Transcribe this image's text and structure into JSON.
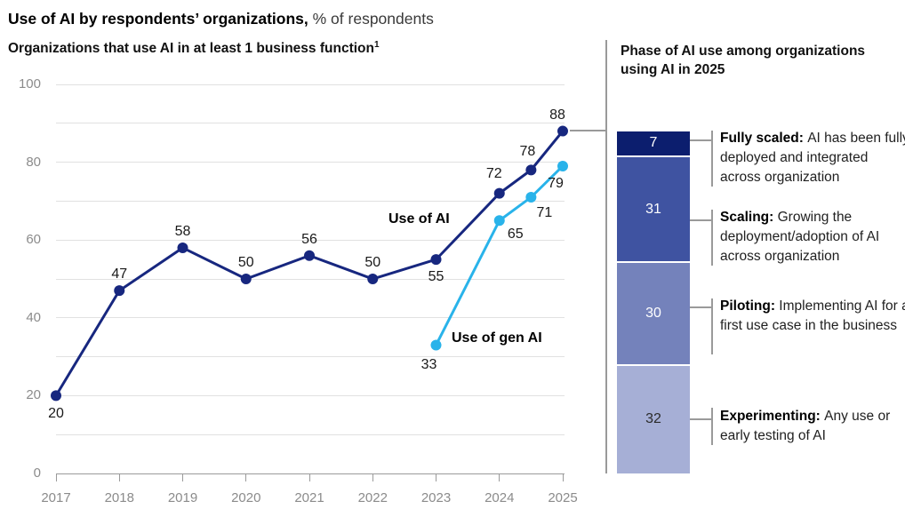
{
  "header": {
    "title_bold": "Use of AI by respondents’ organizations,",
    "title_regular": "% of respondents"
  },
  "palette": {
    "ai_line": "#17277f",
    "gen_ai_line": "#29b3ea",
    "grid": "#e1e1e1",
    "axis": "#9a9a9a",
    "tick_label": "#8b8b8b",
    "divider": "#9a9a9a"
  },
  "chart_data": [
    {
      "type": "line",
      "title": "Organizations that use AI in at least 1 business function",
      "title_footnote_marker": "1",
      "xlabel": "",
      "ylabel": "",
      "ylim": [
        0,
        100
      ],
      "grid_step": 10,
      "y_ticks": [
        0,
        20,
        40,
        60,
        80,
        100
      ],
      "x_ticks": [
        "2017",
        "2018",
        "2019",
        "2020",
        "2021",
        "2022",
        "2023",
        "2024",
        "2025"
      ],
      "legend_position": "inline-labels",
      "series": [
        {
          "name": "Use of AI",
          "color": "#17277f",
          "points": [
            {
              "x": 2017,
              "y": 20,
              "dx": 0,
              "dy": 12
            },
            {
              "x": 2018,
              "y": 47,
              "dx": 0,
              "dy": -27
            },
            {
              "x": 2019,
              "y": 58,
              "dx": 0,
              "dy": -27
            },
            {
              "x": 2020,
              "y": 50,
              "dx": 0,
              "dy": -27
            },
            {
              "x": 2021,
              "y": 56,
              "dx": 0,
              "dy": -27
            },
            {
              "x": 2022,
              "y": 50,
              "dx": 0,
              "dy": -27
            },
            {
              "x": 2023,
              "y": 55,
              "dx": 0,
              "dy": 11
            },
            {
              "x": 2024,
              "y": 72,
              "dx": -6,
              "dy": -31
            },
            {
              "x": 2024.5,
              "y": 78,
              "dx": -4,
              "dy": -29
            },
            {
              "x": 2025,
              "y": 88,
              "dx": -6,
              "dy": -27
            }
          ]
        },
        {
          "name": "Use of gen AI",
          "color": "#29b3ea",
          "points": [
            {
              "x": 2023,
              "y": 33,
              "dx": -8,
              "dy": 14
            },
            {
              "x": 2024,
              "y": 65,
              "dx": 18,
              "dy": 7
            },
            {
              "x": 2024.5,
              "y": 71,
              "dx": 15,
              "dy": 9
            },
            {
              "x": 2025,
              "y": 79,
              "dx": -8,
              "dy": 11
            }
          ]
        }
      ]
    },
    {
      "type": "stacked-bar",
      "title": "Phase of AI use among organizations using AI in 2025",
      "segments": [
        {
          "label": "Fully scaled",
          "value": 7,
          "color": "#0c1e6e",
          "text_color": "#ffffff",
          "desc": "AI has been fully deployed and integrated across organization"
        },
        {
          "label": "Scaling",
          "value": 31,
          "color": "#3f53a1",
          "text_color": "#ffffff",
          "desc": "Growing the deployment/adoption of AI across organization"
        },
        {
          "label": "Piloting",
          "value": 30,
          "color": "#7482bb",
          "text_color": "#ffffff",
          "desc": "Implementing AI for a first use case in the business"
        },
        {
          "label": "Experimenting",
          "value": 32,
          "color": "#a6afd6",
          "text_color": "#2b2b2b",
          "desc": "Any use or early testing of AI"
        }
      ]
    }
  ]
}
